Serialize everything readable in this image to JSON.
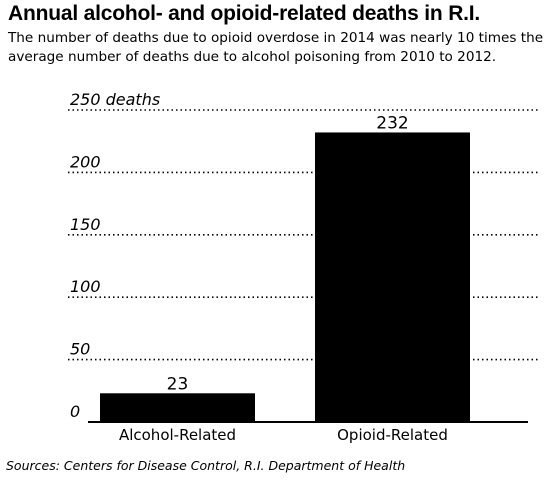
{
  "header": {
    "title": "Annual alcohol- and opioid-related deaths in R.I.",
    "subtitle": "The number of deaths due to opioid overdose in 2014 was nearly 10 times the average number of deaths due to alcohol poisoning from 2010 to 2012."
  },
  "footer": {
    "source": "Sources: Centers for Disease Control, R.I. Department of Health"
  },
  "chart_data": {
    "type": "bar",
    "title": "Annual alcohol- and opioid-related deaths in R.I.",
    "categories": [
      "Alcohol-Related",
      "Opioid-Related"
    ],
    "values": [
      23,
      232
    ],
    "value_labels": [
      "23",
      "232"
    ],
    "ylim": [
      0,
      250
    ],
    "yticks": [
      0,
      50,
      100,
      150,
      200,
      250
    ],
    "ytick_labels": [
      "0",
      "50",
      "100",
      "150",
      "200",
      "250 deaths"
    ],
    "grid": true,
    "grid_style": "dotted",
    "bar_color": "#000000",
    "xlabel": "",
    "ylabel": ""
  }
}
